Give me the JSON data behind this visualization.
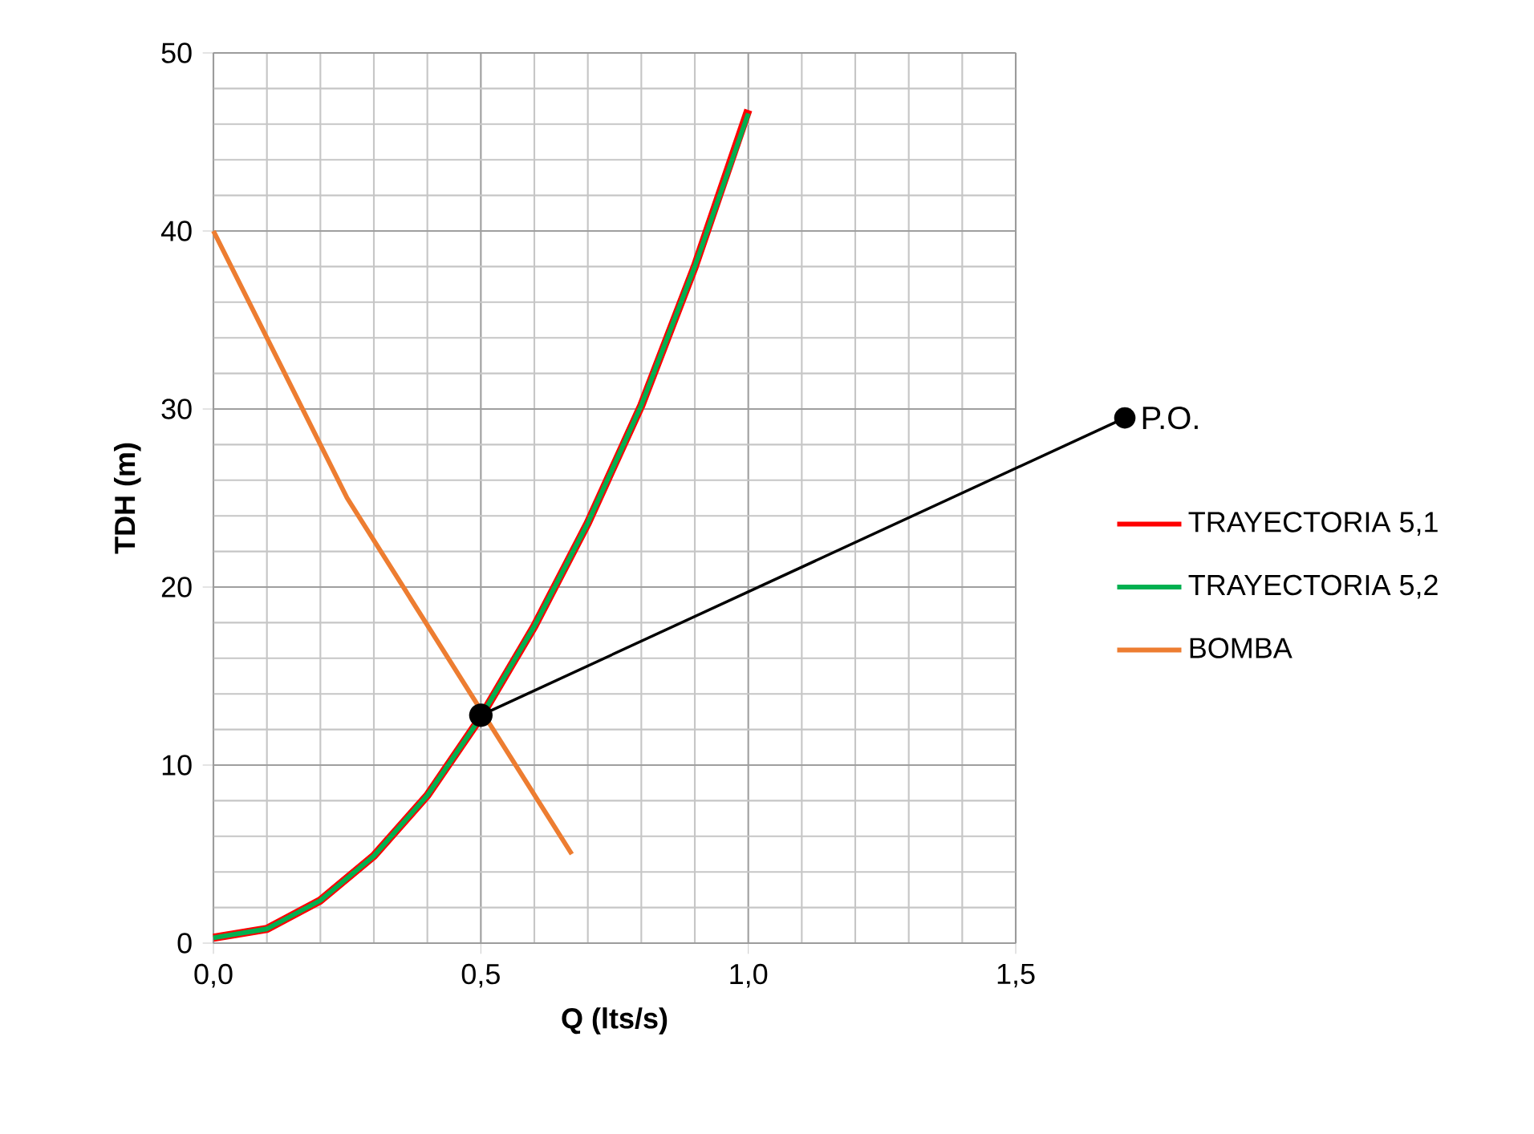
{
  "chart_data": {
    "type": "line",
    "xlabel": "Q (lts/s)",
    "ylabel": "TDH (m)",
    "xlim": [
      0,
      1.5
    ],
    "ylim": [
      0,
      50
    ],
    "xticks": [
      {
        "value": 0,
        "label": "0,0"
      },
      {
        "value": 0.5,
        "label": "0,5"
      },
      {
        "value": 1,
        "label": "1,0"
      },
      {
        "value": 1.5,
        "label": "1,5"
      }
    ],
    "yticks": [
      0,
      10,
      20,
      30,
      40,
      50
    ],
    "grid": true,
    "legend": "right",
    "marker": "none",
    "line_style": "solid",
    "series": [
      {
        "name": "TRAYECTORIA 5,1",
        "color": "#ff0000",
        "x": [
          0,
          0.1,
          0.2,
          0.3,
          0.4,
          0.5,
          0.6,
          0.7,
          0.8,
          0.9,
          1.0
        ],
        "values": [
          0.3,
          0.8,
          2.4,
          4.9,
          8.3,
          12.7,
          17.8,
          23.6,
          30.2,
          38.0,
          46.8
        ]
      },
      {
        "name": "TRAYECTORIA 5,2",
        "color": "#00b050",
        "x": [
          0,
          0.1,
          0.2,
          0.3,
          0.4,
          0.5,
          0.6,
          0.7,
          0.8,
          0.9,
          1.0
        ],
        "values": [
          0.3,
          0.8,
          2.4,
          4.9,
          8.3,
          12.7,
          17.8,
          23.6,
          30.2,
          38.0,
          46.6
        ]
      },
      {
        "name": "BOMBA",
        "color": "#ed7d31",
        "x": [
          0,
          0.25,
          0.67
        ],
        "values": [
          40,
          25,
          5
        ]
      }
    ],
    "annotations": [
      {
        "text": "P.O.",
        "x": 0.5,
        "y": 12.8
      }
    ]
  }
}
